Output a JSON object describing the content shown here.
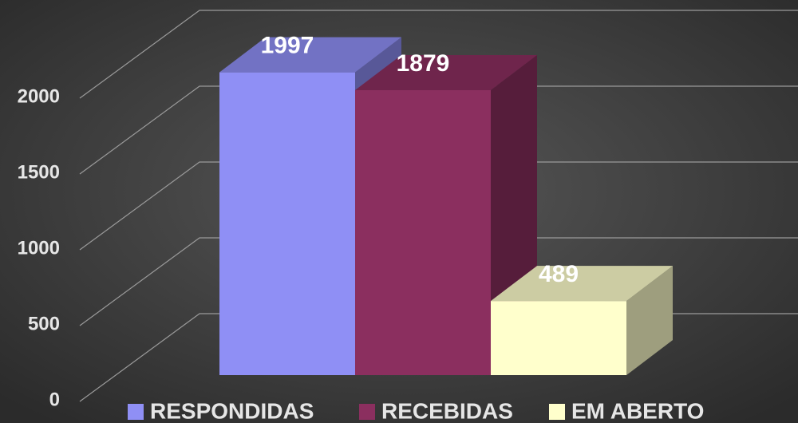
{
  "chart_data": {
    "type": "bar3d",
    "categories": [
      null
    ],
    "series": [
      {
        "name": "RESPONDIDAS",
        "color": "#8f8ff5",
        "values": [
          1997
        ]
      },
      {
        "name": "RECEBIDAS",
        "color": "#8b2f5f",
        "values": [
          1879
        ]
      },
      {
        "name": "EM ABERTO",
        "color": "#ffffcc",
        "values": [
          489
        ]
      }
    ],
    "ylim": [
      0,
      2000
    ],
    "yticks": [
      0,
      500,
      1000,
      1500,
      2000
    ],
    "grid": true,
    "legend": "bottom"
  }
}
